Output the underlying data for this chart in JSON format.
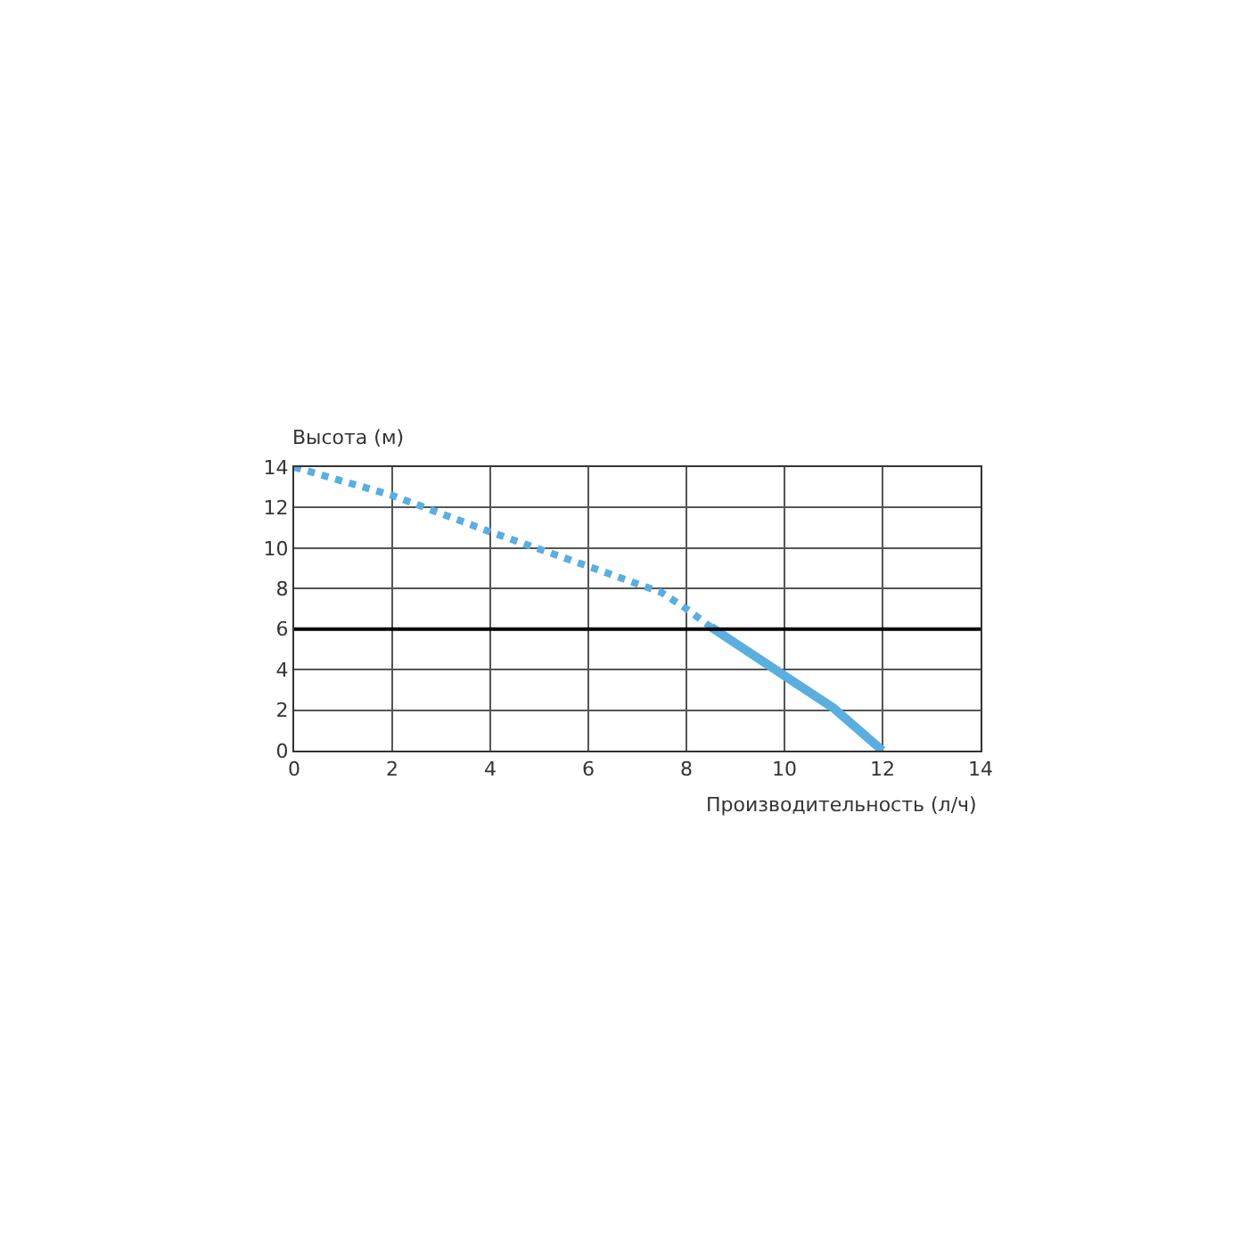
{
  "chart_data": {
    "type": "line",
    "xlabel": "Производительность (л/ч)",
    "ylabel": "Высота (м)",
    "series": [
      {
        "color": "#5aaee0",
        "line_style": "dotted",
        "x": [
          0,
          2,
          4,
          6,
          7.5,
          8,
          8.5
        ],
        "values": [
          14,
          12.6,
          10.8,
          9.1,
          7.8,
          7,
          6.1
        ]
      },
      {
        "color": "#5aaee0",
        "line_style": "solid",
        "x": [
          8.5,
          10,
          11,
          12
        ],
        "values": [
          6.1,
          3.7,
          2.1,
          0
        ]
      }
    ],
    "ref_lines": [
      {
        "axis": "y",
        "value": 6,
        "color": "#000000"
      }
    ],
    "xlim": [
      0,
      14
    ],
    "xticks": [
      0,
      2,
      4,
      6,
      8,
      10,
      12,
      14
    ],
    "ylim": [
      0,
      14
    ],
    "yticks": [
      0,
      2,
      4,
      6,
      8,
      10,
      12,
      14
    ],
    "grid": true,
    "marker": "none"
  }
}
